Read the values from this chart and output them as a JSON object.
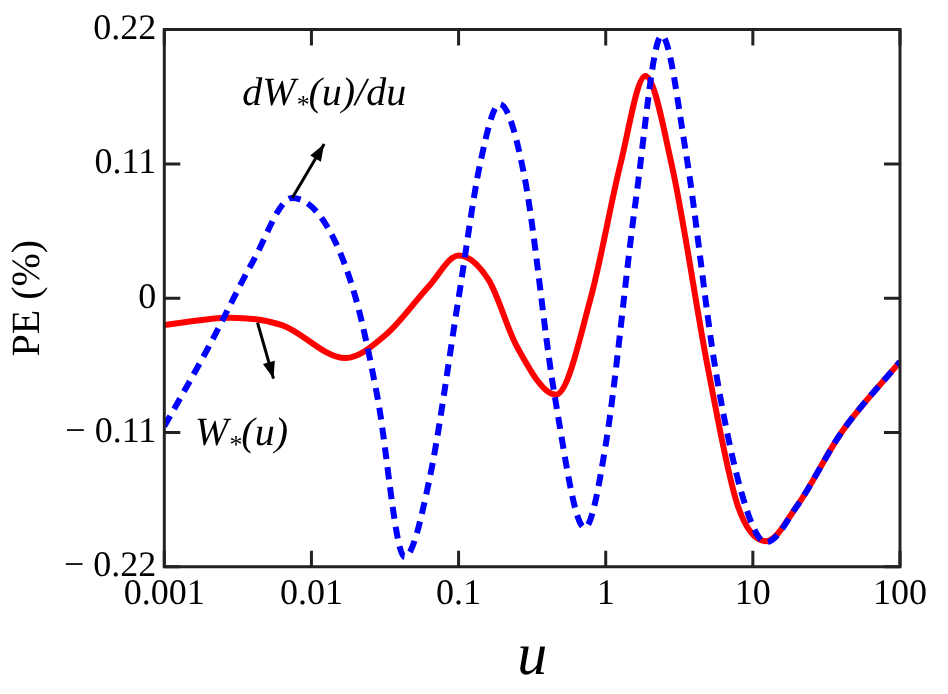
{
  "chart_data": {
    "type": "line",
    "xlabel": "u",
    "ylabel": "PE (%)",
    "log": "x",
    "grid": false,
    "legend": false,
    "marker": "none",
    "xlim": [
      0.001,
      100
    ],
    "xticks": [
      0.001,
      0.01,
      0.1,
      1,
      10,
      100
    ],
    "ylim": [
      -0.22,
      0.22
    ],
    "yticks": [
      -0.22,
      -0.11,
      0,
      0.11,
      0.22
    ],
    "series": [
      {
        "color": "#ff0000",
        "line_style": "solid",
        "x": [
          0.001,
          0.0028,
          0.0063,
          0.017,
          0.032,
          0.063,
          0.1,
          0.16,
          0.25,
          0.46,
          0.79,
          1.26,
          1.86,
          2.8,
          5,
          7.9,
          12.3,
          20,
          40,
          100
        ],
        "values": [
          -0.022,
          -0.016,
          -0.022,
          -0.049,
          -0.03,
          0.01,
          0.035,
          0.015,
          -0.04,
          -0.079,
          0.0,
          0.11,
          0.182,
          0.11,
          -0.06,
          -0.17,
          -0.199,
          -0.17,
          -0.11,
          -0.052
        ]
      },
      {
        "color": "#0000ff",
        "line_style": "dashed",
        "x": [
          0.001,
          0.002,
          0.004,
          0.0074,
          0.0126,
          0.02,
          0.028,
          0.043,
          0.063,
          0.1,
          0.14,
          0.19,
          0.28,
          0.45,
          0.72,
          1,
          1.6,
          2.4,
          3.5,
          5.6,
          8.9,
          12.3,
          20,
          40,
          100
        ],
        "values": [
          -0.105,
          -0.04,
          0.03,
          0.082,
          0.06,
          0.0,
          -0.08,
          -0.212,
          -0.15,
          0.0,
          0.11,
          0.159,
          0.1,
          -0.08,
          -0.188,
          -0.12,
          0.08,
          0.215,
          0.12,
          -0.06,
          -0.17,
          -0.2,
          -0.17,
          -0.11,
          -0.052
        ]
      }
    ],
    "annotations": [
      {
        "text": "dW$_{*}$(u)/du",
        "x": 0.0074,
        "y": 0.082
      },
      {
        "text": "W$_{*}$(u)",
        "x": 0.0043,
        "y": -0.02
      }
    ]
  }
}
